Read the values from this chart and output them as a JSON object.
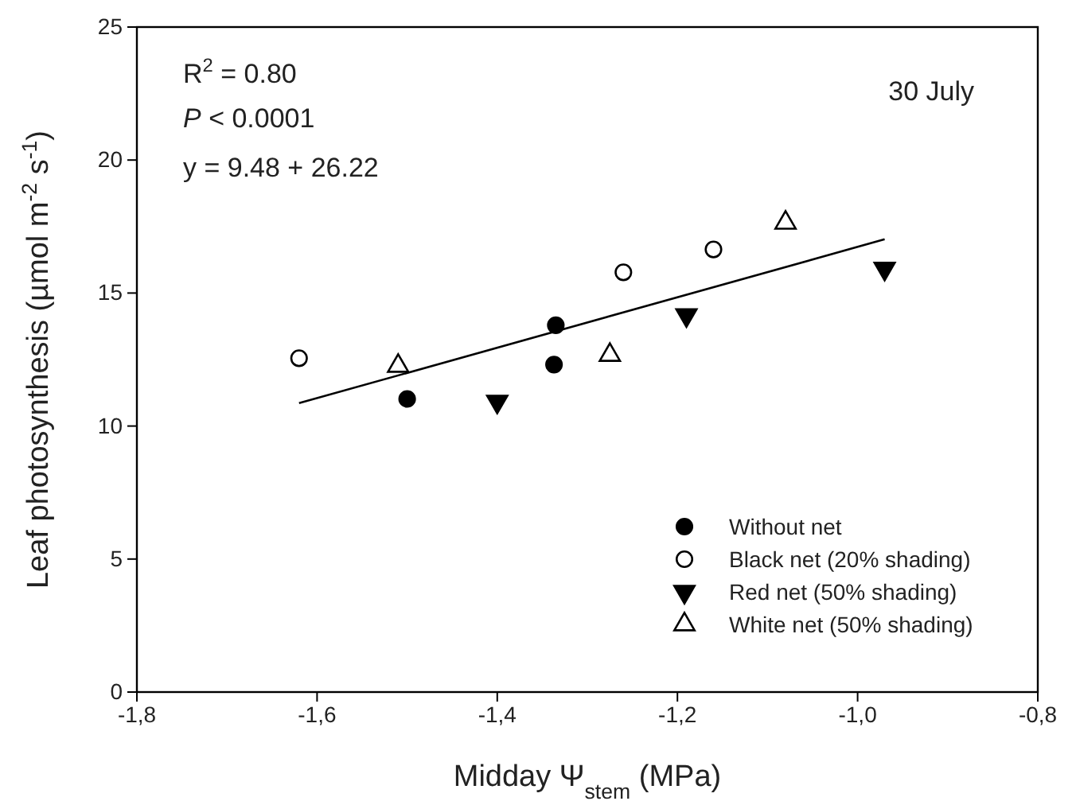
{
  "chart_data": {
    "type": "scatter",
    "xlabel": "Midday Ψ$_{stem}$ (MPa)",
    "ylabel": "Leaf photosynthesis (µmol m$^{-2}$ s$^{-1}$)",
    "xlim": [
      -1.8,
      -0.8
    ],
    "xticks": [
      {
        "value": -1.8,
        "label": "-1,8"
      },
      {
        "value": -1.6,
        "label": "-1,6"
      },
      {
        "value": -1.4,
        "label": "-1,4"
      },
      {
        "value": -1.2,
        "label": "-1,2"
      },
      {
        "value": -1.0,
        "label": "-1,0"
      },
      {
        "value": -0.8,
        "label": "-0,8"
      }
    ],
    "ylim": [
      0,
      25
    ],
    "yticks": [
      0,
      5,
      10,
      15,
      20,
      25
    ],
    "grid": false,
    "legend": "bottom right",
    "annotations": [
      "R$^{2}$ = 0.80",
      "P < 0.0001",
      "y = 9.48 + 26.22",
      "30 July"
    ],
    "series": [
      {
        "name": "Without net",
        "color": "#000000",
        "marker": "circle",
        "x": [
          -1.5,
          -1.335,
          -1.337
        ],
        "values": [
          11.02,
          13.79,
          12.31
        ]
      },
      {
        "name": "Black net (20% shading)",
        "color": "#000000",
        "marker": "circle-open",
        "x": [
          -1.62,
          -1.26,
          -1.16
        ],
        "values": [
          12.55,
          15.78,
          16.64
        ]
      },
      {
        "name": "Red net (50% shading)",
        "color": "#000000",
        "marker": "triangle-down",
        "x": [
          -1.4,
          -1.19,
          -0.97
        ],
        "values": [
          10.92,
          14.17,
          15.92
        ]
      },
      {
        "name": "White net (50% shading)",
        "color": "#000000",
        "marker": "triangle-open",
        "x": [
          -1.51,
          -1.275,
          -1.08
        ],
        "values": [
          12.26,
          12.67,
          17.64
        ]
      },
      {
        "type": "line",
        "color": "#000000",
        "marker": "none",
        "line_style": "solid",
        "x": [
          -1.62,
          -0.97
        ],
        "values": [
          10.86,
          17.02
        ]
      }
    ]
  }
}
